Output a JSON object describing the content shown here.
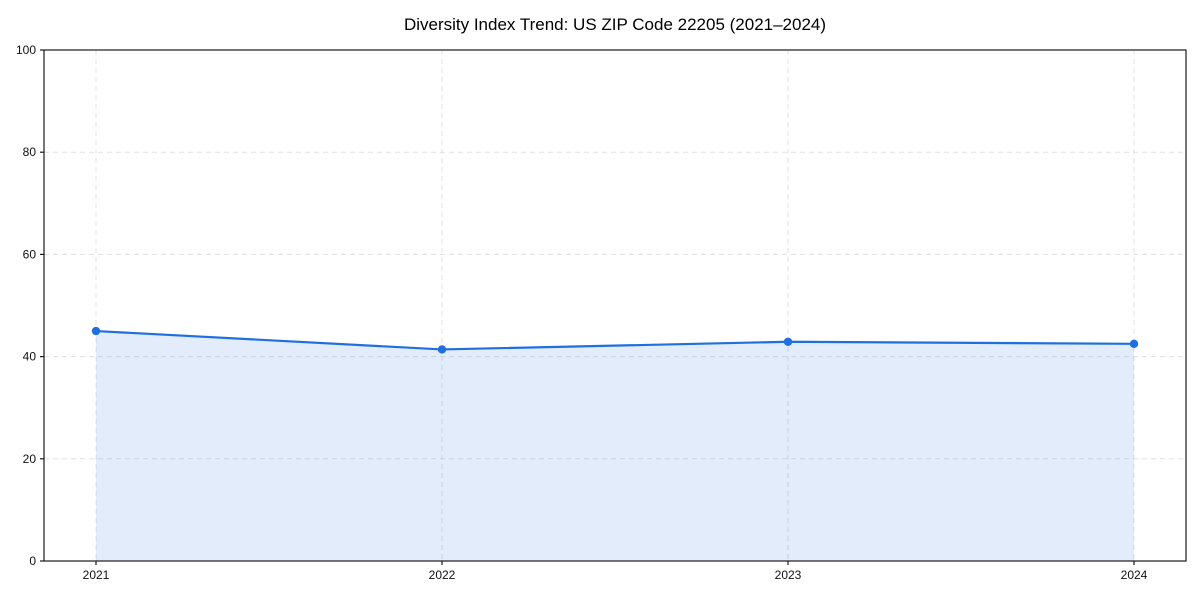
{
  "page": {
    "background_color": "#ffffff"
  },
  "chart_data": {
    "type": "line",
    "title": "Diversity Index Trend: US ZIP Code 22205 (2021–2024)",
    "categories": [
      "2021",
      "2022",
      "2023",
      "2024"
    ],
    "series": [
      {
        "name": "Diversity Index",
        "values": [
          45.0,
          41.4,
          42.9,
          42.5
        ]
      }
    ],
    "xlabel": "",
    "ylabel": "",
    "ylim": [
      0,
      100
    ],
    "yticks": [
      0,
      20,
      40,
      60,
      80,
      100
    ],
    "grid": "on",
    "grid_style": "dashed",
    "legend": "none",
    "area_fill": true,
    "marker": "circle",
    "colors": {
      "line": "#1f6fe0",
      "marker": "#1f6fe0",
      "area_fill": "#1f6fe0",
      "area_fill_opacity": 0.13,
      "grid": "#e1e1e1",
      "axis": "#1a1a1a",
      "text": "#000000"
    }
  }
}
